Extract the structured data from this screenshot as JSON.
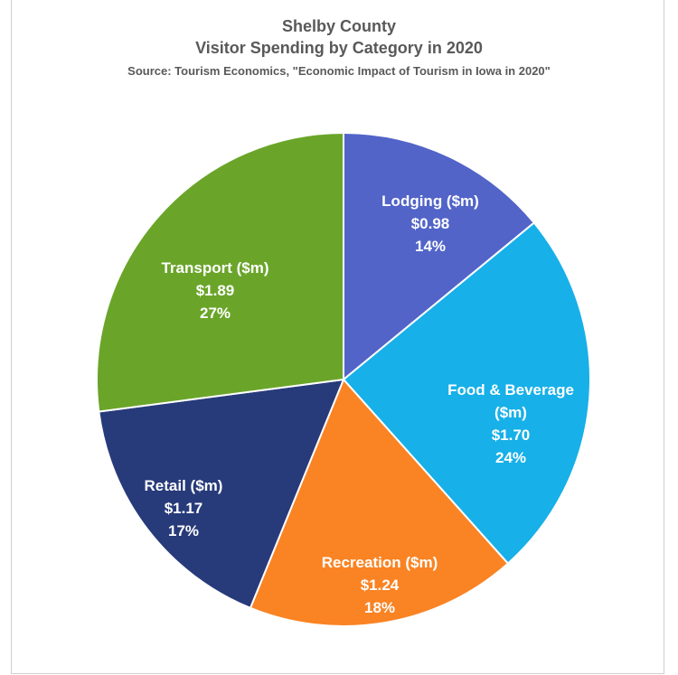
{
  "chart_data": {
    "type": "pie",
    "title": "Shelby County",
    "subtitle": "Visitor Spending by Category in 2020",
    "source": "Source: Tourism Economics, \"Economic Impact of Tourism in Iowa in 2020\"",
    "slices": [
      {
        "name": "Lodging ($m)",
        "value": 0.98,
        "value_label": "$0.98",
        "percent_label": "14%",
        "color": "#5264c8"
      },
      {
        "name": "Food & Beverage ($m)",
        "value": 1.7,
        "value_label": "$1.70",
        "percent_label": "24%",
        "color": "#17b0e8"
      },
      {
        "name": "Recreation ($m)",
        "value": 1.24,
        "value_label": "$1.24",
        "percent_label": "18%",
        "color": "#fa8323"
      },
      {
        "name": "Retail ($m)",
        "value": 1.17,
        "value_label": "$1.17",
        "percent_label": "17%",
        "color": "#273a7a"
      },
      {
        "name": "Transport ($m)",
        "value": 1.89,
        "value_label": "$1.89",
        "percent_label": "27%",
        "color": "#6aa52a"
      }
    ]
  }
}
